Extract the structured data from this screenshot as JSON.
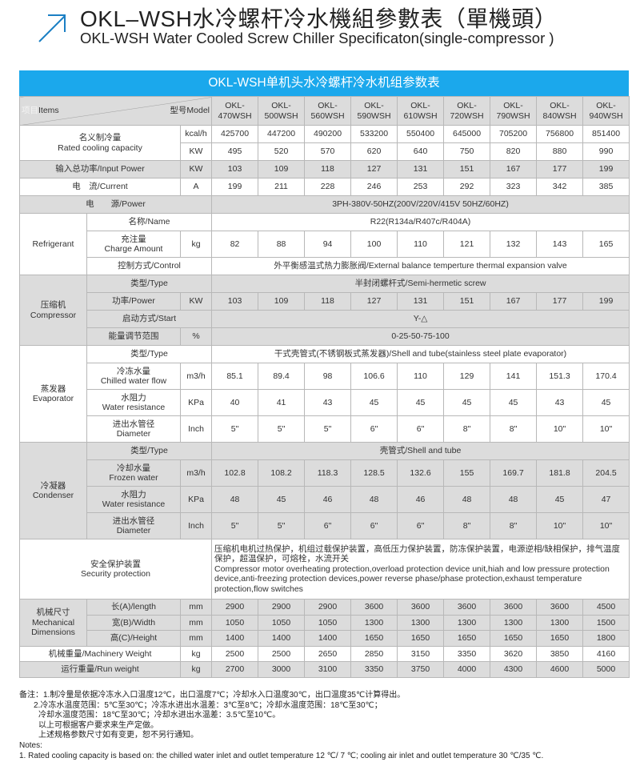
{
  "header": {
    "title": "OKL–WSH水冷螺杆冷水機組參數表（單機頭）",
    "subtitle": "OKL-WSH Water Cooled Screw Chiller Specificaton(single-compressor )",
    "icon": "arrow-up-right-icon",
    "accent": "#1ba8ec"
  },
  "table": {
    "title": "OKL-WSH单机头水冷螺杆冷水机组参数表",
    "items_cn": "项目",
    "items_en": "Items",
    "model_label": "型号Model",
    "models": [
      "OKL-\n470WSH",
      "OKL-\n500WSH",
      "OKL-\n560WSH",
      "OKL-\n590WSH",
      "OKL-\n610WSH",
      "OKL-\n720WSH",
      "OKL-\n790WSH",
      "OKL-\n840WSH",
      "OKL-\n940WSH"
    ],
    "sections": [
      {
        "label": "名义制冷量\nRated cooling capacity",
        "shade": false,
        "rows": [
          {
            "unit": "kcal/h",
            "values": [
              "425700",
              "447200",
              "490200",
              "533200",
              "550400",
              "645000",
              "705200",
              "756800",
              "851400"
            ]
          },
          {
            "unit": "KW",
            "values": [
              "495",
              "520",
              "570",
              "620",
              "640",
              "750",
              "820",
              "880",
              "990"
            ]
          }
        ]
      },
      {
        "label": "输入总功率/Input Power",
        "shade": true,
        "rows": [
          {
            "unit": "KW",
            "values": [
              "103",
              "109",
              "118",
              "127",
              "131",
              "151",
              "167",
              "177",
              "199"
            ]
          }
        ]
      },
      {
        "label": "电　流/Current",
        "shade": false,
        "rows": [
          {
            "unit": "A",
            "values": [
              "199",
              "211",
              "228",
              "246",
              "253",
              "292",
              "323",
              "342",
              "385"
            ]
          }
        ]
      },
      {
        "label": "电　　源/Power",
        "shade": true,
        "span": "3PH-380V-50HZ(200V/220V/415V  50HZ/60HZ)"
      },
      {
        "group": "Refrigerant",
        "shade": false,
        "rows": [
          {
            "label": "名称/Name",
            "span": "R22(R134a/R407c/R404A)"
          },
          {
            "label": "充注量\nCharge Amount",
            "unit": "kg",
            "values": [
              "82",
              "88",
              "94",
              "100",
              "110",
              "121",
              "132",
              "143",
              "165"
            ]
          },
          {
            "label": "控制方式/Control",
            "span": "外平衡感温式热力膨胀阀/External balance temperture thermal expansion valve"
          }
        ]
      },
      {
        "group": "压缩机\nCompressor",
        "shade": true,
        "rows": [
          {
            "label": "类型/Type",
            "span": "半封闭螺杆式/Semi-hermetic screw"
          },
          {
            "label": "功率/Power",
            "unit": "KW",
            "values": [
              "103",
              "109",
              "118",
              "127",
              "131",
              "151",
              "167",
              "177",
              "199"
            ]
          },
          {
            "label": "启动方式/Start",
            "span": "Y-△"
          },
          {
            "label": "能量调节范围",
            "unit": "%",
            "span": "0-25-50-75-100"
          }
        ]
      },
      {
        "group": "蒸发器\nEvaporator",
        "shade": false,
        "rows": [
          {
            "label": "类型/Type",
            "span": "干式壳管式(不锈钢板式蒸发器)/Shell and tube(stainless steel plate evaporator)"
          },
          {
            "label": "冷冻水量\nChilled water flow",
            "unit": "m3/h",
            "values": [
              "85.1",
              "89.4",
              "98",
              "106.6",
              "110",
              "129",
              "141",
              "151.3",
              "170.4"
            ]
          },
          {
            "label": "水阻力\nWater resistance",
            "unit": "KPa",
            "values": [
              "40",
              "41",
              "43",
              "45",
              "45",
              "45",
              "45",
              "43",
              "45"
            ]
          },
          {
            "label": "进出水管径\nDiameter",
            "unit": "Inch",
            "values": [
              "5\"",
              "5\"",
              "5\"",
              "6\"",
              "6\"",
              "8\"",
              "8\"",
              "10\"",
              "10\""
            ]
          }
        ]
      },
      {
        "group": "冷凝器\nCondenser",
        "shade": true,
        "rows": [
          {
            "label": "类型/Type",
            "span": "壳管式/Shell and tube"
          },
          {
            "label": "冷却水量\nFrozen water",
            "unit": "m3/h",
            "values": [
              "102.8",
              "108.2",
              "118.3",
              "128.5",
              "132.6",
              "155",
              "169.7",
              "181.8",
              "204.5"
            ]
          },
          {
            "label": "水阻力\nWater resistance",
            "unit": "KPa",
            "values": [
              "48",
              "45",
              "46",
              "48",
              "46",
              "48",
              "48",
              "45",
              "47"
            ]
          },
          {
            "label": "进出水管径\nDiameter",
            "unit": "Inch",
            "values": [
              "5\"",
              "5\"",
              "6\"",
              "6\"",
              "6\"",
              "8\"",
              "8\"",
              "10\"",
              "10\""
            ]
          }
        ]
      },
      {
        "label": "安全保护装置\nSecurity protection",
        "shade": false,
        "security": true,
        "span": "压缩机电机过热保护，机组过载保护装置，高低压力保护装置，防冻保护装置，电源逆相/缺相保护，排气温度保护，超温保护，可熔栓，水流开关\nCompressor motor overheating protection,overload protection device unit,hiah and low pressure protection device,anti-freezing protection devices,power reverse phase/phase protection,exhaust temperature protection,flow switches"
      },
      {
        "group": "机械尺寸\nMechanical\nDimensions",
        "shade": true,
        "compact": true,
        "rows": [
          {
            "label": "长(A)/length",
            "unit": "mm",
            "values": [
              "2900",
              "2900",
              "2900",
              "3600",
              "3600",
              "3600",
              "3600",
              "3600",
              "4500"
            ]
          },
          {
            "label": "宽(B)/Width",
            "unit": "mm",
            "values": [
              "1050",
              "1050",
              "1050",
              "1300",
              "1300",
              "1300",
              "1300",
              "1300",
              "1500"
            ]
          },
          {
            "label": "高(C)/Height",
            "unit": "mm",
            "values": [
              "1400",
              "1400",
              "1400",
              "1650",
              "1650",
              "1650",
              "1650",
              "1650",
              "1800"
            ]
          }
        ]
      },
      {
        "label": "机械重量/Machinery Weight",
        "shade": false,
        "compact": true,
        "rows": [
          {
            "unit": "kg",
            "values": [
              "2500",
              "2500",
              "2650",
              "2850",
              "3150",
              "3350",
              "3620",
              "3850",
              "4160"
            ]
          }
        ]
      },
      {
        "label": "运行重量/Run weight",
        "shade": true,
        "compact": true,
        "rows": [
          {
            "unit": "kg",
            "values": [
              "2700",
              "3000",
              "3100",
              "3350",
              "3750",
              "4000",
              "4300",
              "4600",
              "5000"
            ]
          }
        ]
      }
    ]
  },
  "notes": {
    "lines": [
      "备注：1.制冷量是依据冷冻水入口温度12℃，出口温度7℃；冷却水入口温度30℃，出口温度35℃计算得出。",
      "2.冷冻水温度范围：5℃至30℃；冷冻水进出水温差：3℃至8℃；冷却水温度范围：18℃至30℃；",
      "冷却水温度范围：18℃至30℃；冷却水进出水温差：3.5℃至10℃。",
      "以上可根据客户要求来生产定做。",
      "上述规格参数尺寸如有变更，恕不另行通知。",
      "Notes:",
      "1. Rated cooling capacity is based on: the chilled water inlet and outlet temperature 12 ℃/ 7 ℃; cooling air inlet and outlet temperature 30 ℃/35 ℃."
    ]
  }
}
